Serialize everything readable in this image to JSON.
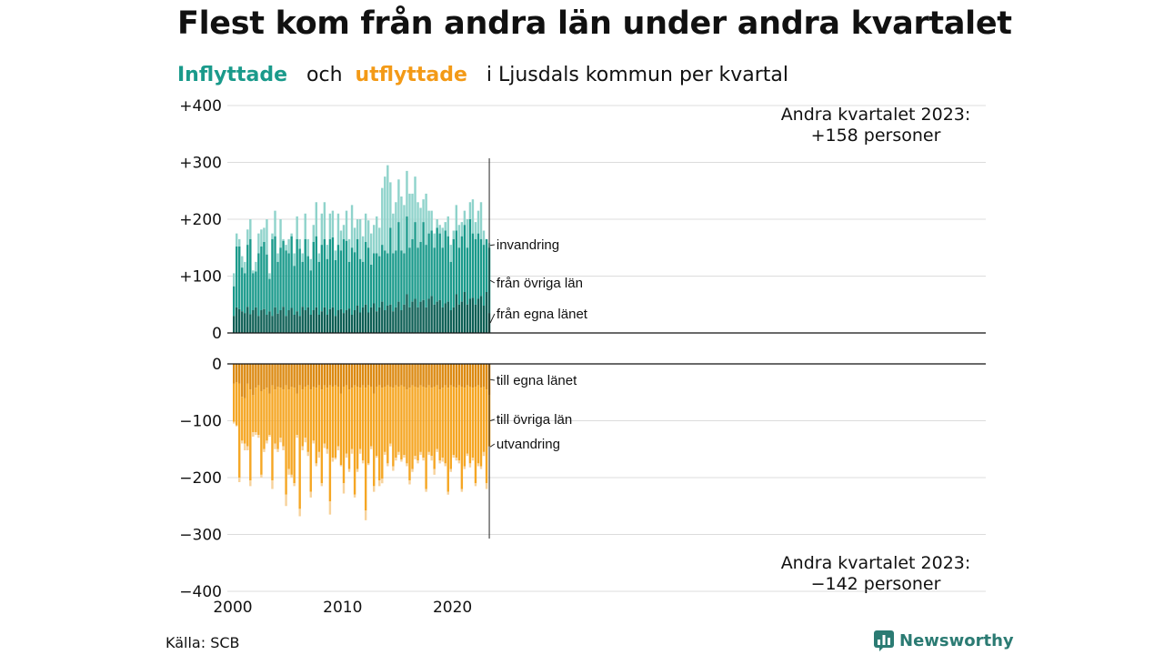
{
  "title": "Flest kom från andra län under andra kvartalet",
  "subtitle": {
    "in_label": "Inflyttade",
    "and_word": "och",
    "out_label": "utflyttade",
    "rest": "i Ljusdals  kommun  per  kvartal"
  },
  "source": "Källa: SCB",
  "brand": "Newsworthy",
  "colors": {
    "in_local": "#0e5f55",
    "in_other": "#1a9a8b",
    "in_immig": "#8fd3cb",
    "out_local": "#dc8a12",
    "out_other": "#f5a623",
    "out_emig": "#f7d29b"
  },
  "chart_data": {
    "type": "bar",
    "stacked": true,
    "x_start_year": 2000,
    "periods": 94,
    "x_ticks": [
      "2000",
      "2010",
      "2020"
    ],
    "y_ticks_top": [
      "+400",
      "+300",
      "+200",
      "+100",
      "0"
    ],
    "y_ticks_bottom": [
      "0",
      "−100",
      "−200",
      "−300",
      "−400"
    ],
    "ylim_in": [
      0,
      400
    ],
    "ylim_out": [
      -400,
      0
    ],
    "grid": true,
    "in_segment_labels": [
      "invandring",
      "från övriga län",
      "från egna länet"
    ],
    "out_segment_labels": [
      "till egna länet",
      "till övriga län",
      "utvandring"
    ],
    "annotation_top": [
      "Andra kvartalet 2023:",
      "+158 personer"
    ],
    "annotation_bottom": [
      "Andra kvartalet 2023:",
      "−142 personer"
    ],
    "inflow": {
      "local": [
        30,
        45,
        42,
        38,
        35,
        46,
        33,
        40,
        45,
        30,
        40,
        42,
        32,
        38,
        30,
        45,
        34,
        40,
        46,
        30,
        40,
        44,
        32,
        38,
        30,
        46,
        40,
        45,
        32,
        40,
        45,
        32,
        38,
        45,
        32,
        42,
        45,
        30,
        40,
        42,
        35,
        40,
        43,
        32,
        40,
        48,
        36,
        45,
        50,
        36,
        45,
        52,
        38,
        45,
        55,
        40,
        48,
        50,
        38,
        45,
        55,
        40,
        50,
        68,
        45,
        55,
        60,
        45,
        55,
        58,
        45,
        60,
        65,
        50,
        55,
        58,
        45,
        52,
        55,
        40,
        45,
        68,
        50,
        55,
        72,
        50,
        60,
        62,
        50,
        60,
        65,
        48,
        72,
        35
      ],
      "total": [
        82,
        152,
        152,
        115,
        105,
        155,
        165,
        105,
        108,
        140,
        152,
        160,
        138,
        95,
        165,
        170,
        125,
        150,
        162,
        145,
        140,
        170,
        118,
        165,
        148,
        125,
        165,
        135,
        110,
        160,
        170,
        125,
        155,
        165,
        130,
        165,
        168,
        128,
        155,
        145,
        165,
        162,
        125,
        150,
        142,
        165,
        130,
        125,
        160,
        150,
        120,
        140,
        140,
        135,
        155,
        145,
        140,
        185,
        140,
        145,
        195,
        145,
        140,
        205,
        150,
        165,
        195,
        150,
        160,
        195,
        155,
        175,
        180,
        150,
        185,
        175,
        150,
        180,
        170,
        125,
        165,
        180,
        150,
        170,
        190,
        150,
        200,
        175,
        165,
        175,
        165,
        155,
        165,
        150
      ],
      "gross": [
        105,
        175,
        165,
        135,
        125,
        182,
        200,
        110,
        125,
        175,
        182,
        185,
        200,
        105,
        175,
        215,
        140,
        200,
        165,
        155,
        165,
        175,
        140,
        205,
        165,
        140,
        210,
        165,
        130,
        190,
        230,
        140,
        210,
        230,
        155,
        210,
        215,
        145,
        210,
        180,
        190,
        215,
        165,
        225,
        185,
        200,
        200,
        170,
        210,
        198,
        175,
        190,
        205,
        185,
        255,
        275,
        295,
        265,
        210,
        230,
        270,
        240,
        225,
        285,
        245,
        245,
        275,
        230,
        220,
        235,
        245,
        215,
        215,
        175,
        200,
        190,
        185,
        195,
        205,
        155,
        180,
        225,
        190,
        195,
        215,
        200,
        230,
        235,
        195,
        215,
        230,
        180,
        160,
        158
      ]
    },
    "outflow": {
      "local": [
        35,
        32,
        35,
        58,
        60,
        35,
        45,
        55,
        42,
        38,
        48,
        45,
        42,
        52,
        38,
        45,
        40,
        42,
        45,
        38,
        45,
        40,
        42,
        52,
        38,
        45,
        40,
        38,
        45,
        40,
        42,
        38,
        45,
        38,
        42,
        38,
        40,
        38,
        40,
        52,
        40,
        38,
        45,
        42,
        38,
        40,
        42,
        38,
        42,
        38,
        40,
        52,
        40,
        38,
        42,
        40,
        38,
        40,
        42,
        38,
        40,
        38,
        40,
        45,
        42,
        38,
        40,
        42,
        38,
        40,
        42,
        38,
        42,
        40,
        38,
        45,
        42,
        38,
        42,
        38,
        40,
        42,
        38,
        40,
        42,
        38,
        40,
        42,
        40,
        38,
        42,
        40,
        45,
        55
      ],
      "total": [
        102,
        108,
        200,
        135,
        140,
        145,
        205,
        120,
        120,
        125,
        195,
        150,
        135,
        125,
        205,
        140,
        150,
        130,
        145,
        230,
        185,
        195,
        210,
        125,
        255,
        145,
        130,
        155,
        225,
        135,
        175,
        155,
        210,
        140,
        150,
        242,
        165,
        165,
        145,
        178,
        210,
        158,
        185,
        150,
        230,
        185,
        150,
        170,
        258,
        175,
        145,
        215,
        162,
        205,
        202,
        155,
        175,
        140,
        180,
        165,
        155,
        168,
        160,
        175,
        205,
        185,
        162,
        170,
        155,
        165,
        220,
        155,
        162,
        185,
        150,
        170,
        165,
        175,
        225,
        185,
        160,
        165,
        170,
        220,
        180,
        158,
        175,
        165,
        210,
        175,
        180,
        155,
        210,
        145
      ],
      "gross": [
        105,
        110,
        208,
        140,
        152,
        152,
        215,
        128,
        125,
        130,
        200,
        155,
        140,
        128,
        220,
        150,
        155,
        138,
        152,
        250,
        195,
        200,
        215,
        130,
        268,
        152,
        138,
        162,
        235,
        140,
        180,
        165,
        215,
        148,
        158,
        265,
        172,
        168,
        152,
        180,
        228,
        165,
        190,
        158,
        235,
        190,
        158,
        175,
        275,
        178,
        150,
        225,
        165,
        215,
        210,
        160,
        180,
        145,
        188,
        170,
        160,
        172,
        165,
        180,
        212,
        190,
        168,
        175,
        160,
        170,
        225,
        160,
        170,
        195,
        155,
        175,
        172,
        180,
        230,
        190,
        165,
        170,
        175,
        225,
        185,
        162,
        182,
        170,
        215,
        180,
        185,
        162,
        220,
        142
      ]
    }
  }
}
